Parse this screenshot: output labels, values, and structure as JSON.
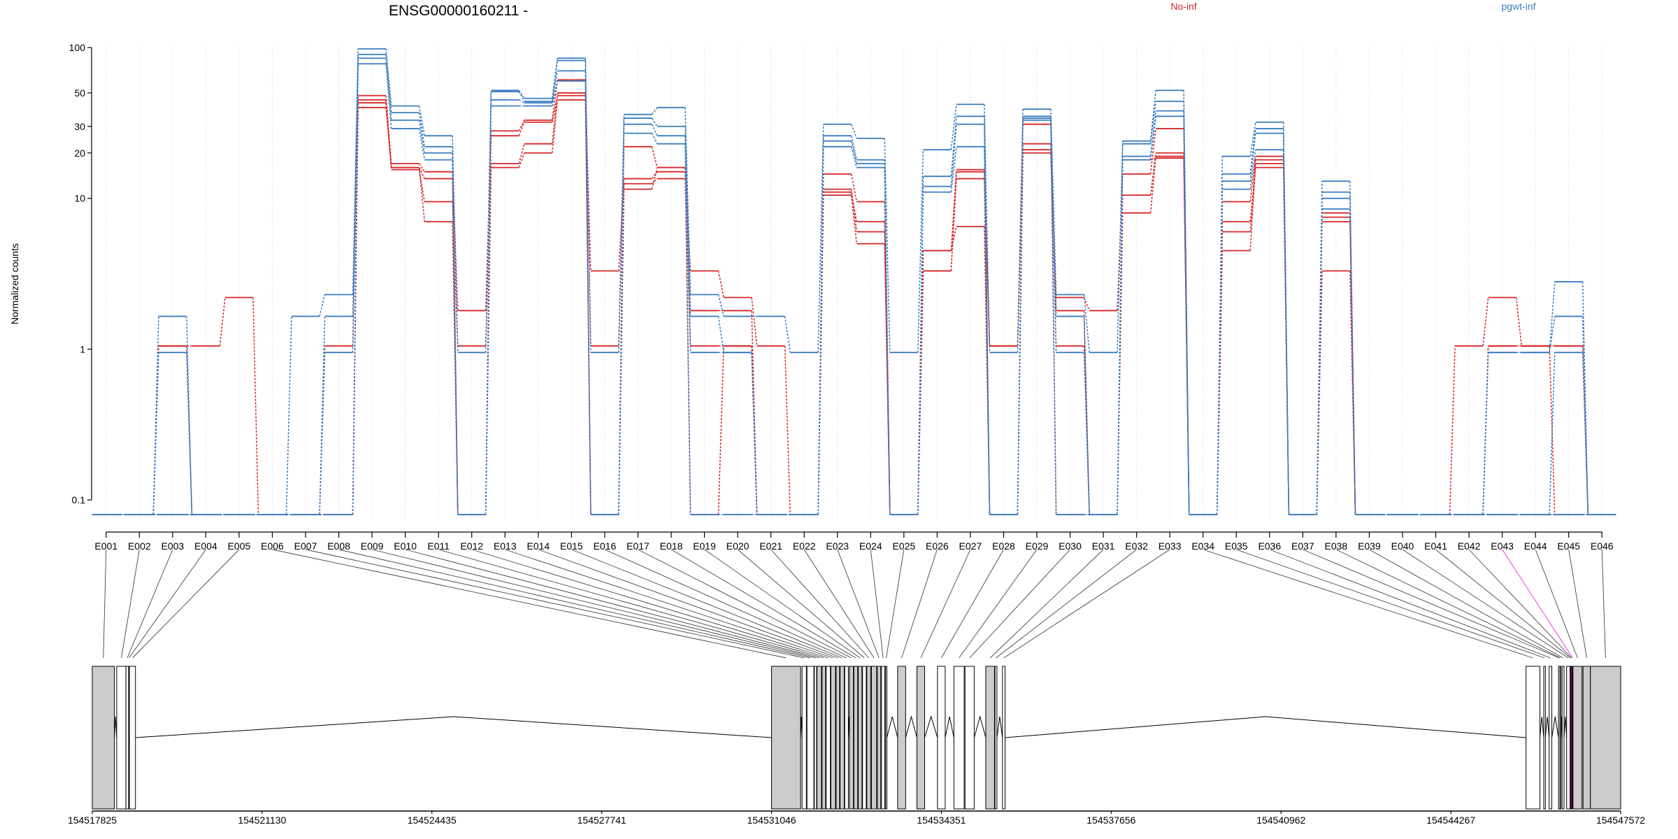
{
  "chart_data": {
    "type": "line",
    "title": "ENSG00000160211 -",
    "ylabel": "Normalized counts",
    "y_scale": "log",
    "y_ticks": [
      "0.1",
      "1",
      "10",
      "20",
      "30",
      "50",
      "100"
    ],
    "y_tick_values": [
      0.1,
      1,
      10,
      20,
      30,
      50,
      100
    ],
    "ylim": [
      0.075,
      100
    ],
    "grid": "vertical dotted per exon",
    "legend": [
      {
        "label": "No-inf",
        "color": "#d62728"
      },
      {
        "label": "pgwt-inf",
        "color": "#3b7dc0"
      }
    ],
    "categories": [
      "E001",
      "E002",
      "E003",
      "E004",
      "E005",
      "E006",
      "E007",
      "E008",
      "E009",
      "E010",
      "E011",
      "E012",
      "E013",
      "E014",
      "E015",
      "E016",
      "E017",
      "E018",
      "E019",
      "E020",
      "E021",
      "E022",
      "E023",
      "E024",
      "E025",
      "E026",
      "E027",
      "E028",
      "E029",
      "E030",
      "E031",
      "E032",
      "E033",
      "E034",
      "E035",
      "E036",
      "E037",
      "E038",
      "E039",
      "E040",
      "E041",
      "E042",
      "E043",
      "E044",
      "E045",
      "E046"
    ],
    "series": [
      {
        "group": "No-inf",
        "values": [
          0.08,
          0.08,
          1.05,
          1.05,
          2.2,
          0.08,
          0.08,
          0.08,
          48,
          17,
          15,
          1.8,
          28,
          33,
          61,
          1.05,
          22,
          16,
          3.3,
          2.2,
          1.05,
          0.08,
          14.5,
          9.5,
          0.08,
          4.5,
          15.5,
          1.05,
          23,
          2.2,
          1.8,
          14.5,
          29,
          0.08,
          9.5,
          19,
          0.08,
          8,
          0.08,
          0.08,
          0.08,
          1.05,
          2.2,
          1.05,
          1.05,
          0.08
        ]
      },
      {
        "group": "No-inf",
        "values": [
          0.08,
          0.08,
          0.08,
          0.08,
          0.08,
          0.08,
          0.08,
          1.05,
          45,
          15.5,
          9.5,
          1.05,
          17,
          23,
          50,
          3.3,
          13.5,
          15,
          1.8,
          1.8,
          0.08,
          0.08,
          11.5,
          6,
          0.08,
          3.3,
          13.5,
          0.08,
          21,
          1.8,
          0.08,
          10.5,
          20,
          0.08,
          6,
          18,
          0.08,
          7,
          0.08,
          0.08,
          0.08,
          0.08,
          1.05,
          1.05,
          0.08,
          0.08
        ]
      },
      {
        "group": "No-inf",
        "values": [
          0.08,
          0.08,
          1.05,
          0.08,
          0.08,
          0.08,
          0.08,
          0.08,
          43,
          16,
          13.5,
          0.08,
          26,
          32,
          48,
          0.08,
          12.5,
          13.5,
          1.05,
          1.05,
          0.08,
          0.08,
          11,
          7,
          0.08,
          4.5,
          6.5,
          0.08,
          20,
          1.05,
          0.08,
          8,
          19,
          0.08,
          7,
          16,
          0.08,
          3.3,
          0.08,
          0.08,
          0.08,
          0.08,
          1.05,
          1.05,
          1.05,
          0.08
        ]
      },
      {
        "group": "No-inf",
        "values": [
          0.08,
          0.08,
          0.08,
          0.08,
          0.08,
          0.08,
          0.08,
          0.08,
          40,
          16,
          7,
          0.08,
          16,
          20,
          45,
          0.08,
          11.5,
          16,
          0.08,
          1.05,
          0.08,
          0.08,
          10.5,
          5,
          0.08,
          3.3,
          15,
          1.05,
          31,
          0.08,
          0.08,
          18,
          18.5,
          0.08,
          4.5,
          17,
          0.08,
          7.5,
          0.08,
          0.08,
          0.08,
          0.08,
          0.08,
          0.08,
          0.08,
          0.08
        ]
      },
      {
        "group": "pgwt-inf",
        "values": [
          0.08,
          0.08,
          1.65,
          0.08,
          0.08,
          0.08,
          1.65,
          2.3,
          98,
          41,
          26,
          0.95,
          52,
          46,
          85,
          0.95,
          36,
          40,
          2.3,
          1.65,
          1.65,
          0.95,
          31,
          25,
          0.95,
          21,
          42,
          0.95,
          39,
          2.3,
          0.95,
          24,
          52,
          0.08,
          19,
          32,
          0.08,
          13,
          0.08,
          0.08,
          0.08,
          0.08,
          0.95,
          0.95,
          2.8,
          0.08
        ]
      },
      {
        "group": "pgwt-inf",
        "values": [
          0.08,
          0.08,
          0.95,
          0.08,
          0.08,
          0.08,
          0.08,
          1.65,
          90,
          37,
          22,
          0.08,
          51,
          44,
          82,
          0.08,
          34,
          30,
          1.65,
          0.95,
          0.08,
          0.08,
          26,
          18,
          0.08,
          14,
          35,
          0.08,
          35,
          1.65,
          0.08,
          23,
          44,
          0.08,
          14.5,
          29,
          0.08,
          11,
          0.08,
          0.08,
          0.08,
          0.08,
          0.95,
          0.95,
          1.65,
          0.08
        ]
      },
      {
        "group": "pgwt-inf",
        "values": [
          0.08,
          0.08,
          0.08,
          0.08,
          0.08,
          0.08,
          0.08,
          0.95,
          85,
          33,
          20,
          0.08,
          45,
          43,
          70,
          0.08,
          31,
          26,
          0.95,
          0.95,
          0.08,
          0.08,
          24,
          17,
          0.08,
          12,
          31,
          0.08,
          34,
          0.95,
          0.08,
          19,
          38,
          0.08,
          13,
          27,
          0.08,
          10,
          0.08,
          0.08,
          0.08,
          0.08,
          0.08,
          0.08,
          0.95,
          0.08
        ]
      },
      {
        "group": "pgwt-inf",
        "values": [
          0.08,
          0.08,
          0.08,
          0.08,
          0.08,
          0.08,
          0.08,
          0.08,
          78,
          29,
          18,
          0.08,
          41,
          41,
          60,
          0.08,
          27,
          23,
          0.08,
          0.08,
          0.08,
          0.08,
          22,
          16,
          0.08,
          11,
          22,
          0.08,
          33,
          0.08,
          0.08,
          18,
          35,
          0.08,
          11.5,
          21,
          0.08,
          8.5,
          0.08,
          0.08,
          0.08,
          0.08,
          0.08,
          0.08,
          0.08,
          0.08
        ]
      }
    ],
    "genomic_coordinates": [
      "154517825",
      "154521130",
      "154524435",
      "154527741",
      "154531046",
      "154534351",
      "154537656",
      "154540962",
      "154544267",
      "154547572"
    ],
    "coordinate_values": [
      154517825,
      154521130,
      154524435,
      154527741,
      154531046,
      154534351,
      154537656,
      154540962,
      154544267,
      154547572
    ],
    "exon_genomic_starts": [
      154517825,
      154518300,
      154518480,
      154518532,
      154518548,
      154531046,
      154531640,
      154531735,
      154531878,
      154531930,
      154532029,
      154532110,
      154532200,
      154532302,
      154532380,
      154532470,
      154532562,
      154532648,
      154532733,
      154532817,
      154532900,
      154532990,
      154533105,
      154533186,
      154533265,
      154533500,
      154533875,
      154534275,
      154534595,
      154534810,
      154535215,
      154535395,
      154535540,
      154545730,
      154546075,
      154546180,
      154546362,
      154546390,
      154546432,
      154546520,
      154546588,
      154546607,
      154546627,
      154546645,
      154546840,
      154546983
    ],
    "exon_genomic_ends": [
      154518255,
      154518480,
      154518532,
      154518548,
      154518665,
      154531611,
      154531723,
      154531870,
      154531923,
      154532018,
      154532097,
      154532190,
      154532290,
      154532370,
      154532460,
      154532540,
      154532638,
      154532722,
      154532805,
      154532888,
      154532975,
      154533090,
      154533170,
      154533250,
      154533290,
      154533655,
      154534025,
      154534425,
      154534795,
      154534990,
      154535385,
      154535432,
      154535590,
      154546000,
      154546107,
      154546232,
      154546390,
      154546410,
      154546470,
      154546588,
      154546607,
      154546627,
      154546645,
      154546820,
      154546983,
      154547572
    ],
    "exon_fill": [
      "gray",
      "white",
      "white",
      "white",
      "white",
      "gray",
      "white",
      "white",
      "white",
      "gray",
      "gray",
      "white",
      "gray",
      "gray",
      "gray",
      "white",
      "gray",
      "gray",
      "gray",
      "white",
      "gray",
      "gray",
      "gray",
      "white",
      "white",
      "gray",
      "gray",
      "white",
      "white",
      "white",
      "gray",
      "white",
      "white",
      "white",
      "white",
      "white",
      "white",
      "white",
      "white",
      "white",
      "magenta",
      "magenta",
      "magenta",
      "gray",
      "gray",
      "gray"
    ],
    "colors": {
      "gray": "#cccccc",
      "white": "#ffffff",
      "magenta": "#ee22ee"
    },
    "highlighted_exon": "E043"
  }
}
